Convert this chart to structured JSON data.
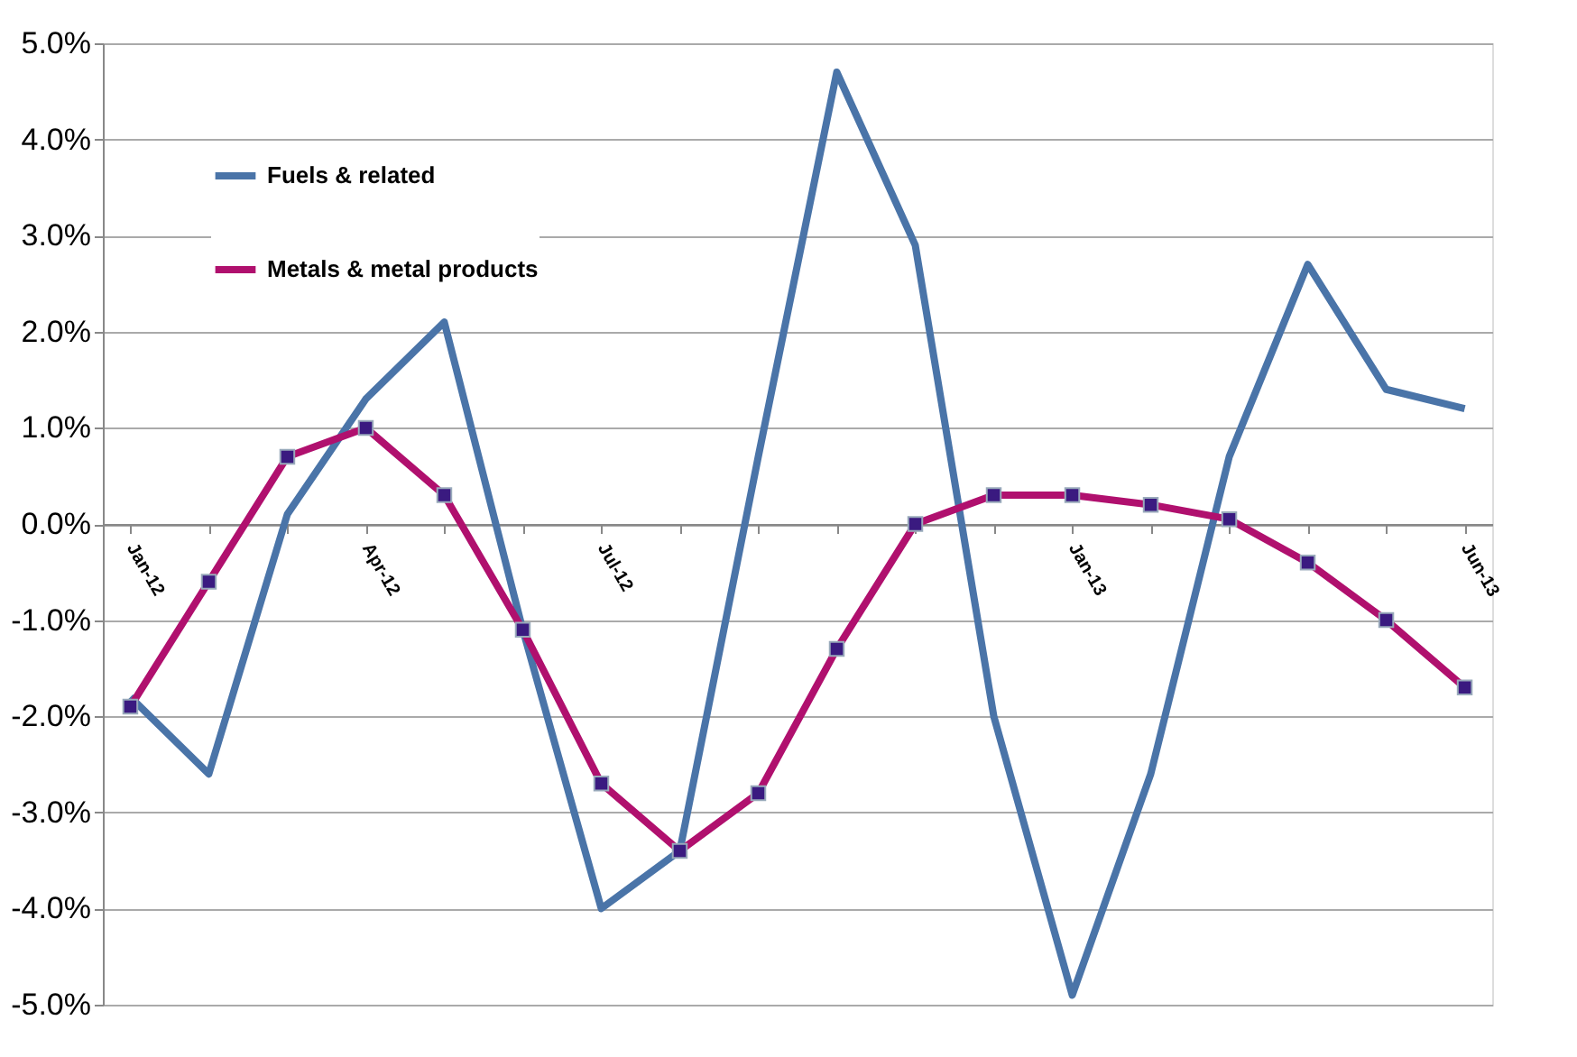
{
  "chart_data": {
    "type": "line",
    "categories": [
      "Jan-12",
      null,
      null,
      "Apr-12",
      null,
      null,
      "Jul-12",
      null,
      null,
      null,
      null,
      null,
      "Jan-13",
      null,
      null,
      null,
      null,
      "Jun-13"
    ],
    "series": [
      {
        "name": "Fuels & related",
        "color": "#4a74a8",
        "marker": "none",
        "values": [
          -1.8,
          -2.6,
          0.1,
          1.3,
          2.1,
          -1.1,
          -4.0,
          -3.4,
          0.7,
          4.7,
          2.9,
          -2.0,
          -4.9,
          -2.6,
          0.7,
          2.7,
          1.4,
          1.2
        ]
      },
      {
        "name": "Metals & metal products",
        "color": "#b0106e",
        "marker": "square",
        "values": [
          -1.9,
          -0.6,
          0.7,
          1.0,
          0.3,
          -1.1,
          -2.7,
          -3.4,
          -2.8,
          -1.3,
          0.0,
          0.3,
          0.3,
          0.2,
          0.05,
          -0.4,
          -1.0,
          -1.7
        ]
      }
    ],
    "ylim": [
      -5,
      5
    ],
    "yticks": [
      {
        "value": -5,
        "label": "-5.0%"
      },
      {
        "value": -4,
        "label": "-4.0%"
      },
      {
        "value": -3,
        "label": "-3.0%"
      },
      {
        "value": -2,
        "label": "-2.0%"
      },
      {
        "value": -1,
        "label": "-1.0%"
      },
      {
        "value": 0,
        "label": "0.0%"
      },
      {
        "value": 1,
        "label": "1.0%"
      },
      {
        "value": 2,
        "label": "2.0%"
      },
      {
        "value": 3,
        "label": "3.0%"
      },
      {
        "value": 4,
        "label": "4.0%"
      },
      {
        "value": 5,
        "label": "5.0%"
      }
    ],
    "grid": "y",
    "legend": "top left"
  }
}
